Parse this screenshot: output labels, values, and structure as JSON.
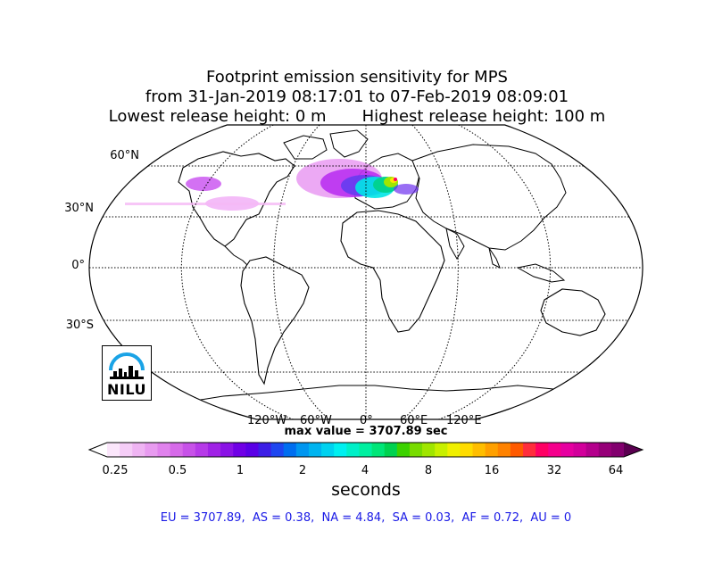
{
  "title": {
    "line1": "Footprint emission sensitivity for MPS",
    "line2": "from 31-Jan-2019 08:17:01 to 07-Feb-2019 08:09:01",
    "line3": "Lowest release height: 0 m       Highest release height: 100 m"
  },
  "map": {
    "projection": "Robinson",
    "lat_labels": [
      "60°N",
      "30°N",
      "0°",
      "30°S"
    ],
    "lon_labels": [
      "120°W",
      "60°W",
      "0°",
      "60°E",
      "120°E"
    ],
    "gridlines": "dotted"
  },
  "max_value": "max value = 3707.89 sec",
  "colorbar": {
    "tick_labels": [
      "0.25",
      "0.5",
      "1",
      "2",
      "4",
      "8",
      "16",
      "32",
      "64"
    ],
    "label": "seconds",
    "extend": "both"
  },
  "logo": {
    "text": "NILU"
  },
  "summary": "EU = 3707.89,  AS = 0.38,  NA = 4.84,  SA = 0.03,  AF = 0.72,  AU = 0"
}
